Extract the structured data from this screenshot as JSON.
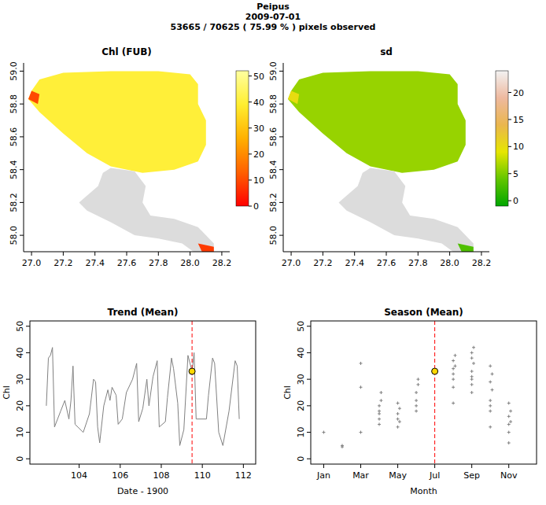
{
  "suptitle": [
    "Peipus",
    "2009-07-01",
    "53665 / 70625 ( 75.99 % ) pixels observed"
  ],
  "chart_data": [
    {
      "type": "map",
      "title": "Chl (FUB)",
      "xlim": [
        26.95,
        28.25
      ],
      "ylim": [
        57.9,
        59.05
      ],
      "xticks": [
        {
          "value": 27,
          "label": "27.0"
        },
        {
          "value": 27.2,
          "label": "27.2"
        },
        {
          "value": 27.4,
          "label": "27.4"
        },
        {
          "value": 27.6,
          "label": "27.6"
        },
        {
          "value": 27.8,
          "label": "27.8"
        },
        {
          "value": 28,
          "label": "28.0"
        },
        {
          "value": 28.2,
          "label": "28.2"
        }
      ],
      "yticks": [
        {
          "value": 58,
          "label": "58.0"
        },
        {
          "value": 58.2,
          "label": "58.2"
        },
        {
          "value": 58.4,
          "label": "58.4"
        },
        {
          "value": 58.6,
          "label": "58.6"
        },
        {
          "value": 58.8,
          "label": "58.8"
        },
        {
          "value": 59,
          "label": "59.0"
        }
      ],
      "areas": [
        {
          "outline": [
            [
              27.0,
              58.88
            ],
            [
              27.05,
              58.95
            ],
            [
              27.2,
              58.99
            ],
            [
              27.5,
              59.0
            ],
            [
              27.8,
              59.0
            ],
            [
              28.0,
              58.98
            ],
            [
              28.05,
              58.92
            ],
            [
              28.05,
              58.8
            ],
            [
              28.1,
              58.7
            ],
            [
              28.1,
              58.55
            ],
            [
              28.05,
              58.45
            ],
            [
              27.9,
              58.4
            ],
            [
              27.7,
              58.38
            ],
            [
              27.5,
              58.42
            ],
            [
              27.35,
              58.5
            ],
            [
              27.2,
              58.62
            ],
            [
              27.05,
              58.75
            ],
            [
              26.98,
              58.83
            ]
          ],
          "value": 40
        },
        {
          "outline": [
            [
              27.5,
              58.41
            ],
            [
              27.65,
              58.39
            ],
            [
              27.72,
              58.3
            ],
            [
              27.7,
              58.2
            ],
            [
              27.75,
              58.12
            ],
            [
              27.9,
              58.1
            ],
            [
              28.05,
              58.05
            ],
            [
              28.15,
              57.95
            ],
            [
              28.15,
              57.88
            ],
            [
              28.05,
              57.88
            ],
            [
              27.95,
              57.95
            ],
            [
              27.8,
              57.98
            ],
            [
              27.65,
              58.0
            ],
            [
              27.5,
              58.08
            ],
            [
              27.35,
              58.15
            ],
            [
              27.3,
              58.2
            ],
            [
              27.42,
              58.3
            ],
            [
              27.45,
              58.38
            ]
          ],
          "value": null
        },
        {
          "outline": [
            [
              26.98,
              58.83
            ],
            [
              27.0,
              58.88
            ],
            [
              27.05,
              58.86
            ],
            [
              27.04,
              58.8
            ]
          ],
          "value": 10
        },
        {
          "outline": [
            [
              28.05,
              57.95
            ],
            [
              28.15,
              57.93
            ],
            [
              28.15,
              57.88
            ],
            [
              28.08,
              57.89
            ]
          ],
          "value": 8
        }
      ],
      "colorbar": {
        "lim": [
          0,
          52
        ],
        "ticks": [
          0,
          10,
          20,
          30,
          40,
          50
        ],
        "colors": [
          "#ff0000",
          "#ff6000",
          "#ffb000",
          "#ffee30",
          "#ffffa0"
        ]
      }
    },
    {
      "type": "map",
      "title": "sd",
      "xlim": [
        26.95,
        28.25
      ],
      "ylim": [
        57.9,
        59.05
      ],
      "xticks": [
        {
          "value": 27,
          "label": "27.0"
        },
        {
          "value": 27.2,
          "label": "27.2"
        },
        {
          "value": 27.4,
          "label": "27.4"
        },
        {
          "value": 27.6,
          "label": "27.6"
        },
        {
          "value": 27.8,
          "label": "27.8"
        },
        {
          "value": 28,
          "label": "28.0"
        },
        {
          "value": 28.2,
          "label": "28.2"
        }
      ],
      "yticks": [
        {
          "value": 58,
          "label": "58.0"
        },
        {
          "value": 58.2,
          "label": "58.2"
        },
        {
          "value": 58.4,
          "label": "58.4"
        },
        {
          "value": 58.6,
          "label": "58.6"
        },
        {
          "value": 58.8,
          "label": "58.8"
        },
        {
          "value": 59,
          "label": "59.0"
        }
      ],
      "areas": [
        {
          "outline": [
            [
              27.0,
              58.88
            ],
            [
              27.05,
              58.95
            ],
            [
              27.2,
              58.99
            ],
            [
              27.5,
              59.0
            ],
            [
              27.8,
              59.0
            ],
            [
              28.0,
              58.98
            ],
            [
              28.05,
              58.92
            ],
            [
              28.05,
              58.8
            ],
            [
              28.1,
              58.7
            ],
            [
              28.1,
              58.55
            ],
            [
              28.05,
              58.45
            ],
            [
              27.9,
              58.4
            ],
            [
              27.7,
              58.38
            ],
            [
              27.5,
              58.42
            ],
            [
              27.35,
              58.5
            ],
            [
              27.2,
              58.62
            ],
            [
              27.05,
              58.75
            ],
            [
              26.98,
              58.83
            ]
          ],
          "value": 6
        },
        {
          "outline": [
            [
              27.5,
              58.41
            ],
            [
              27.65,
              58.39
            ],
            [
              27.72,
              58.3
            ],
            [
              27.7,
              58.2
            ],
            [
              27.75,
              58.12
            ],
            [
              27.9,
              58.1
            ],
            [
              28.05,
              58.05
            ],
            [
              28.15,
              57.95
            ],
            [
              28.15,
              57.88
            ],
            [
              28.05,
              57.88
            ],
            [
              27.95,
              57.95
            ],
            [
              27.8,
              57.98
            ],
            [
              27.65,
              58.0
            ],
            [
              27.5,
              58.08
            ],
            [
              27.35,
              58.15
            ],
            [
              27.3,
              58.2
            ],
            [
              27.42,
              58.3
            ],
            [
              27.45,
              58.38
            ]
          ],
          "value": null
        },
        {
          "outline": [
            [
              26.98,
              58.83
            ],
            [
              27.0,
              58.88
            ],
            [
              27.05,
              58.86
            ],
            [
              27.04,
              58.8
            ]
          ],
          "value": 10
        },
        {
          "outline": [
            [
              28.05,
              57.95
            ],
            [
              28.15,
              57.93
            ],
            [
              28.15,
              57.88
            ],
            [
              28.08,
              57.89
            ]
          ],
          "value": 3
        }
      ],
      "colorbar": {
        "lim": [
          -1,
          24
        ],
        "ticks": [
          0,
          5,
          10,
          15,
          20
        ],
        "colors": [
          "#00a600",
          "#63c600",
          "#e6e600",
          "#eab64e",
          "#eeb99f",
          "#f2f2f2"
        ]
      }
    },
    {
      "type": "line",
      "title": "Trend (Mean)",
      "xlabel": "Date - 1900",
      "ylabel": "Chl",
      "color": "#808080",
      "xlim": [
        101.6,
        112.6
      ],
      "ylim": [
        -2,
        52
      ],
      "xticks": [
        104,
        106,
        108,
        110,
        112
      ],
      "yticks": [
        0,
        10,
        20,
        30,
        40,
        50
      ],
      "x": [
        102.4,
        102.5,
        102.6,
        102.7,
        102.8,
        103.1,
        103.3,
        103.5,
        103.6,
        103.7,
        103.8,
        104.2,
        104.5,
        104.7,
        104.8,
        104.9,
        105.0,
        105.2,
        105.4,
        105.5,
        105.6,
        105.8,
        105.9,
        106.1,
        106.3,
        106.6,
        106.8,
        106.9,
        107.1,
        107.3,
        107.4,
        107.6,
        107.8,
        107.9,
        108.2,
        108.3,
        108.5,
        108.6,
        108.8,
        108.9,
        109.1,
        109.3,
        109.5,
        109.6,
        109.7,
        110.2,
        110.3,
        110.5,
        110.6,
        110.8,
        111.0,
        111.3,
        111.6,
        111.7,
        111.8
      ],
      "values": [
        20,
        38,
        39,
        42,
        12,
        18,
        22,
        15,
        22,
        35,
        13,
        10,
        17,
        30,
        29,
        12,
        6,
        20,
        26,
        22,
        27,
        24,
        13,
        15,
        25,
        30,
        36,
        14,
        19,
        30,
        20,
        31,
        37,
        12,
        14,
        23,
        38,
        34,
        21,
        5,
        11,
        39,
        33,
        40,
        15,
        15,
        24,
        38,
        36,
        10,
        5,
        18,
        37,
        35,
        15
      ],
      "highlight": {
        "x": 109.5,
        "y": 33,
        "color": "#ffd700"
      }
    },
    {
      "type": "scatter",
      "title": "Season (Mean)",
      "xlabel": "Month",
      "ylabel": "Chl",
      "color": "#808080",
      "marker": "plus",
      "xlim": [
        0.3,
        12.5
      ],
      "ylim": [
        -2,
        52
      ],
      "xticks": [
        {
          "value": 1,
          "label": "Jan"
        },
        {
          "value": 3,
          "label": "Mar"
        },
        {
          "value": 5,
          "label": "May"
        },
        {
          "value": 7,
          "label": "Jul"
        },
        {
          "value": 9,
          "label": "Sep"
        },
        {
          "value": 11,
          "label": "Nov"
        }
      ],
      "yticks": [
        0,
        10,
        20,
        30,
        40,
        50
      ],
      "x": [
        1.0,
        2.0,
        2.0,
        3.0,
        3.0,
        3.0,
        4.0,
        4.0,
        4.0,
        4.0,
        4.1,
        4.1,
        4.0,
        5.0,
        5.0,
        5.0,
        5.1,
        5.0,
        5.1,
        6.0,
        6.0,
        6.0,
        6.1,
        6.0,
        6.1,
        8.0,
        8.0,
        8.0,
        8.0,
        8.1,
        8.0,
        8.1,
        8.0,
        9.0,
        9.0,
        9.0,
        9.0,
        9.1,
        9.0,
        9.0,
        9.1,
        9.0,
        10.0,
        10.0,
        10.0,
        10.1,
        10.0,
        10.1,
        10.0,
        10.0,
        11.0,
        11.0,
        11.0,
        11.0,
        11.1,
        11.0,
        11.1
      ],
      "values": [
        10,
        5,
        4.5,
        36,
        27,
        10,
        13,
        15,
        18,
        20,
        22,
        25,
        17,
        12,
        15,
        17,
        19,
        21,
        14,
        18,
        22,
        25,
        28,
        20,
        30,
        21,
        27,
        30,
        32,
        35,
        37,
        39,
        34,
        25,
        28,
        30,
        33,
        36,
        38,
        40,
        42,
        31,
        12,
        18,
        22,
        26,
        29,
        32,
        35,
        20,
        6,
        10,
        13,
        16,
        18,
        21,
        14
      ],
      "highlight": {
        "x": 7,
        "y": 33,
        "color": "#ffd700"
      }
    }
  ]
}
